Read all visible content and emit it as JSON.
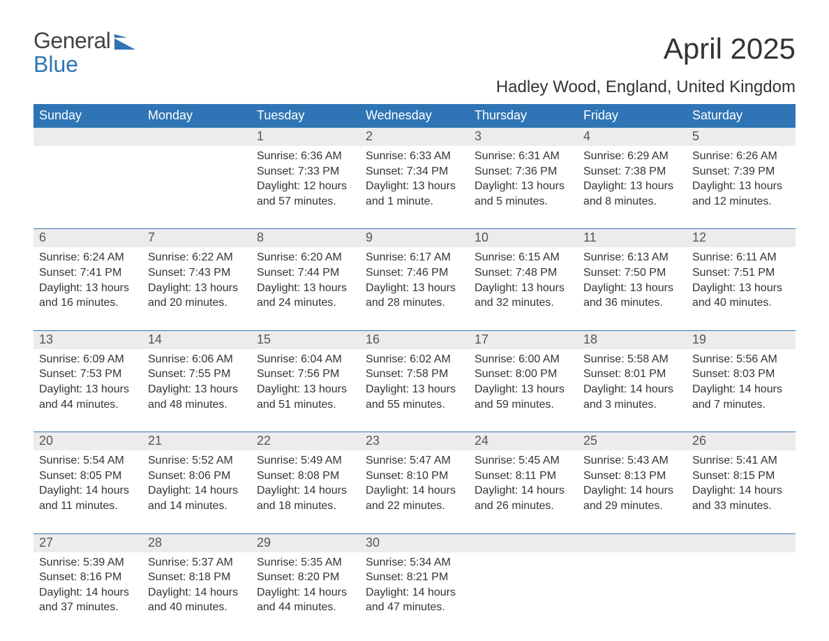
{
  "brand": {
    "word1": "General",
    "word2": "Blue",
    "icon_color": "#2f75b5"
  },
  "title": "April 2025",
  "subtitle": "Hadley Wood, England, United Kingdom",
  "colors": {
    "header_bg": "#2f75b5",
    "header_text": "#ffffff",
    "daynum_bg": "#ececec",
    "body_text": "#333333",
    "week_border": "#2f75b5",
    "page_bg": "#ffffff"
  },
  "typography": {
    "title_fontsize": 42,
    "subtitle_fontsize": 24,
    "dow_fontsize": 18,
    "daynum_fontsize": 18,
    "body_fontsize": 16
  },
  "layout": {
    "columns": 7,
    "rows": 5
  },
  "days_of_week": [
    "Sunday",
    "Monday",
    "Tuesday",
    "Wednesday",
    "Thursday",
    "Friday",
    "Saturday"
  ],
  "weeks": [
    [
      {
        "num": "",
        "sunrise": "",
        "sunset": "",
        "daylight1": "",
        "daylight2": ""
      },
      {
        "num": "",
        "sunrise": "",
        "sunset": "",
        "daylight1": "",
        "daylight2": ""
      },
      {
        "num": "1",
        "sunrise": "Sunrise: 6:36 AM",
        "sunset": "Sunset: 7:33 PM",
        "daylight1": "Daylight: 12 hours",
        "daylight2": "and 57 minutes."
      },
      {
        "num": "2",
        "sunrise": "Sunrise: 6:33 AM",
        "sunset": "Sunset: 7:34 PM",
        "daylight1": "Daylight: 13 hours",
        "daylight2": "and 1 minute."
      },
      {
        "num": "3",
        "sunrise": "Sunrise: 6:31 AM",
        "sunset": "Sunset: 7:36 PM",
        "daylight1": "Daylight: 13 hours",
        "daylight2": "and 5 minutes."
      },
      {
        "num": "4",
        "sunrise": "Sunrise: 6:29 AM",
        "sunset": "Sunset: 7:38 PM",
        "daylight1": "Daylight: 13 hours",
        "daylight2": "and 8 minutes."
      },
      {
        "num": "5",
        "sunrise": "Sunrise: 6:26 AM",
        "sunset": "Sunset: 7:39 PM",
        "daylight1": "Daylight: 13 hours",
        "daylight2": "and 12 minutes."
      }
    ],
    [
      {
        "num": "6",
        "sunrise": "Sunrise: 6:24 AM",
        "sunset": "Sunset: 7:41 PM",
        "daylight1": "Daylight: 13 hours",
        "daylight2": "and 16 minutes."
      },
      {
        "num": "7",
        "sunrise": "Sunrise: 6:22 AM",
        "sunset": "Sunset: 7:43 PM",
        "daylight1": "Daylight: 13 hours",
        "daylight2": "and 20 minutes."
      },
      {
        "num": "8",
        "sunrise": "Sunrise: 6:20 AM",
        "sunset": "Sunset: 7:44 PM",
        "daylight1": "Daylight: 13 hours",
        "daylight2": "and 24 minutes."
      },
      {
        "num": "9",
        "sunrise": "Sunrise: 6:17 AM",
        "sunset": "Sunset: 7:46 PM",
        "daylight1": "Daylight: 13 hours",
        "daylight2": "and 28 minutes."
      },
      {
        "num": "10",
        "sunrise": "Sunrise: 6:15 AM",
        "sunset": "Sunset: 7:48 PM",
        "daylight1": "Daylight: 13 hours",
        "daylight2": "and 32 minutes."
      },
      {
        "num": "11",
        "sunrise": "Sunrise: 6:13 AM",
        "sunset": "Sunset: 7:50 PM",
        "daylight1": "Daylight: 13 hours",
        "daylight2": "and 36 minutes."
      },
      {
        "num": "12",
        "sunrise": "Sunrise: 6:11 AM",
        "sunset": "Sunset: 7:51 PM",
        "daylight1": "Daylight: 13 hours",
        "daylight2": "and 40 minutes."
      }
    ],
    [
      {
        "num": "13",
        "sunrise": "Sunrise: 6:09 AM",
        "sunset": "Sunset: 7:53 PM",
        "daylight1": "Daylight: 13 hours",
        "daylight2": "and 44 minutes."
      },
      {
        "num": "14",
        "sunrise": "Sunrise: 6:06 AM",
        "sunset": "Sunset: 7:55 PM",
        "daylight1": "Daylight: 13 hours",
        "daylight2": "and 48 minutes."
      },
      {
        "num": "15",
        "sunrise": "Sunrise: 6:04 AM",
        "sunset": "Sunset: 7:56 PM",
        "daylight1": "Daylight: 13 hours",
        "daylight2": "and 51 minutes."
      },
      {
        "num": "16",
        "sunrise": "Sunrise: 6:02 AM",
        "sunset": "Sunset: 7:58 PM",
        "daylight1": "Daylight: 13 hours",
        "daylight2": "and 55 minutes."
      },
      {
        "num": "17",
        "sunrise": "Sunrise: 6:00 AM",
        "sunset": "Sunset: 8:00 PM",
        "daylight1": "Daylight: 13 hours",
        "daylight2": "and 59 minutes."
      },
      {
        "num": "18",
        "sunrise": "Sunrise: 5:58 AM",
        "sunset": "Sunset: 8:01 PM",
        "daylight1": "Daylight: 14 hours",
        "daylight2": "and 3 minutes."
      },
      {
        "num": "19",
        "sunrise": "Sunrise: 5:56 AM",
        "sunset": "Sunset: 8:03 PM",
        "daylight1": "Daylight: 14 hours",
        "daylight2": "and 7 minutes."
      }
    ],
    [
      {
        "num": "20",
        "sunrise": "Sunrise: 5:54 AM",
        "sunset": "Sunset: 8:05 PM",
        "daylight1": "Daylight: 14 hours",
        "daylight2": "and 11 minutes."
      },
      {
        "num": "21",
        "sunrise": "Sunrise: 5:52 AM",
        "sunset": "Sunset: 8:06 PM",
        "daylight1": "Daylight: 14 hours",
        "daylight2": "and 14 minutes."
      },
      {
        "num": "22",
        "sunrise": "Sunrise: 5:49 AM",
        "sunset": "Sunset: 8:08 PM",
        "daylight1": "Daylight: 14 hours",
        "daylight2": "and 18 minutes."
      },
      {
        "num": "23",
        "sunrise": "Sunrise: 5:47 AM",
        "sunset": "Sunset: 8:10 PM",
        "daylight1": "Daylight: 14 hours",
        "daylight2": "and 22 minutes."
      },
      {
        "num": "24",
        "sunrise": "Sunrise: 5:45 AM",
        "sunset": "Sunset: 8:11 PM",
        "daylight1": "Daylight: 14 hours",
        "daylight2": "and 26 minutes."
      },
      {
        "num": "25",
        "sunrise": "Sunrise: 5:43 AM",
        "sunset": "Sunset: 8:13 PM",
        "daylight1": "Daylight: 14 hours",
        "daylight2": "and 29 minutes."
      },
      {
        "num": "26",
        "sunrise": "Sunrise: 5:41 AM",
        "sunset": "Sunset: 8:15 PM",
        "daylight1": "Daylight: 14 hours",
        "daylight2": "and 33 minutes."
      }
    ],
    [
      {
        "num": "27",
        "sunrise": "Sunrise: 5:39 AM",
        "sunset": "Sunset: 8:16 PM",
        "daylight1": "Daylight: 14 hours",
        "daylight2": "and 37 minutes."
      },
      {
        "num": "28",
        "sunrise": "Sunrise: 5:37 AM",
        "sunset": "Sunset: 8:18 PM",
        "daylight1": "Daylight: 14 hours",
        "daylight2": "and 40 minutes."
      },
      {
        "num": "29",
        "sunrise": "Sunrise: 5:35 AM",
        "sunset": "Sunset: 8:20 PM",
        "daylight1": "Daylight: 14 hours",
        "daylight2": "and 44 minutes."
      },
      {
        "num": "30",
        "sunrise": "Sunrise: 5:34 AM",
        "sunset": "Sunset: 8:21 PM",
        "daylight1": "Daylight: 14 hours",
        "daylight2": "and 47 minutes."
      },
      {
        "num": "",
        "sunrise": "",
        "sunset": "",
        "daylight1": "",
        "daylight2": ""
      },
      {
        "num": "",
        "sunrise": "",
        "sunset": "",
        "daylight1": "",
        "daylight2": ""
      },
      {
        "num": "",
        "sunrise": "",
        "sunset": "",
        "daylight1": "",
        "daylight2": ""
      }
    ]
  ]
}
